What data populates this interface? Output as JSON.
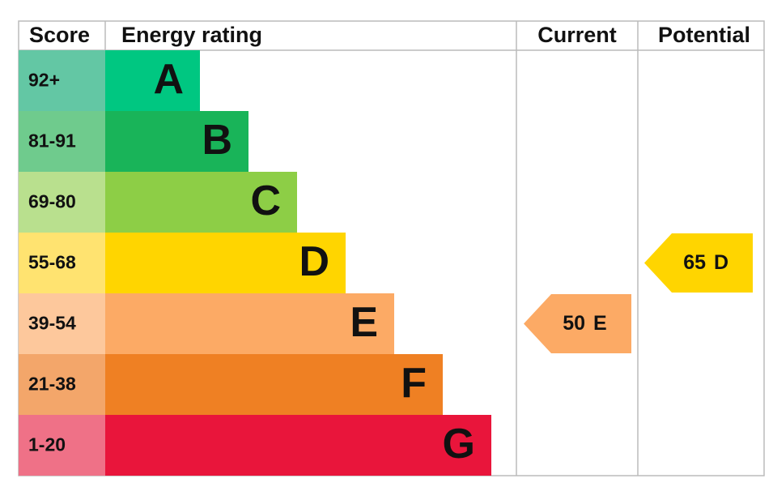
{
  "headers": {
    "score": "Score",
    "rating": "Energy rating",
    "current": "Current",
    "potential": "Potential"
  },
  "bands": [
    {
      "score": "92+",
      "letter": "A",
      "color": "#00c781",
      "score_color": "#63c7a4"
    },
    {
      "score": "81-91",
      "letter": "B",
      "color": "#19b459",
      "score_color": "#6fcb8d"
    },
    {
      "score": "69-80",
      "letter": "C",
      "color": "#8dce46",
      "score_color": "#b9e08e"
    },
    {
      "score": "55-68",
      "letter": "D",
      "color": "#ffd500",
      "score_color": "#ffe370"
    },
    {
      "score": "39-54",
      "letter": "E",
      "color": "#fcaa65",
      "score_color": "#fdc89c"
    },
    {
      "score": "21-38",
      "letter": "F",
      "color": "#ef8023",
      "score_color": "#f3a66a"
    },
    {
      "score": "1-20",
      "letter": "G",
      "color": "#e9153b",
      "score_color": "#ef7187"
    }
  ],
  "current": {
    "value": 50,
    "letter": "E",
    "color": "#fcaa65"
  },
  "potential": {
    "value": 65,
    "letter": "D",
    "color": "#ffd500"
  }
}
